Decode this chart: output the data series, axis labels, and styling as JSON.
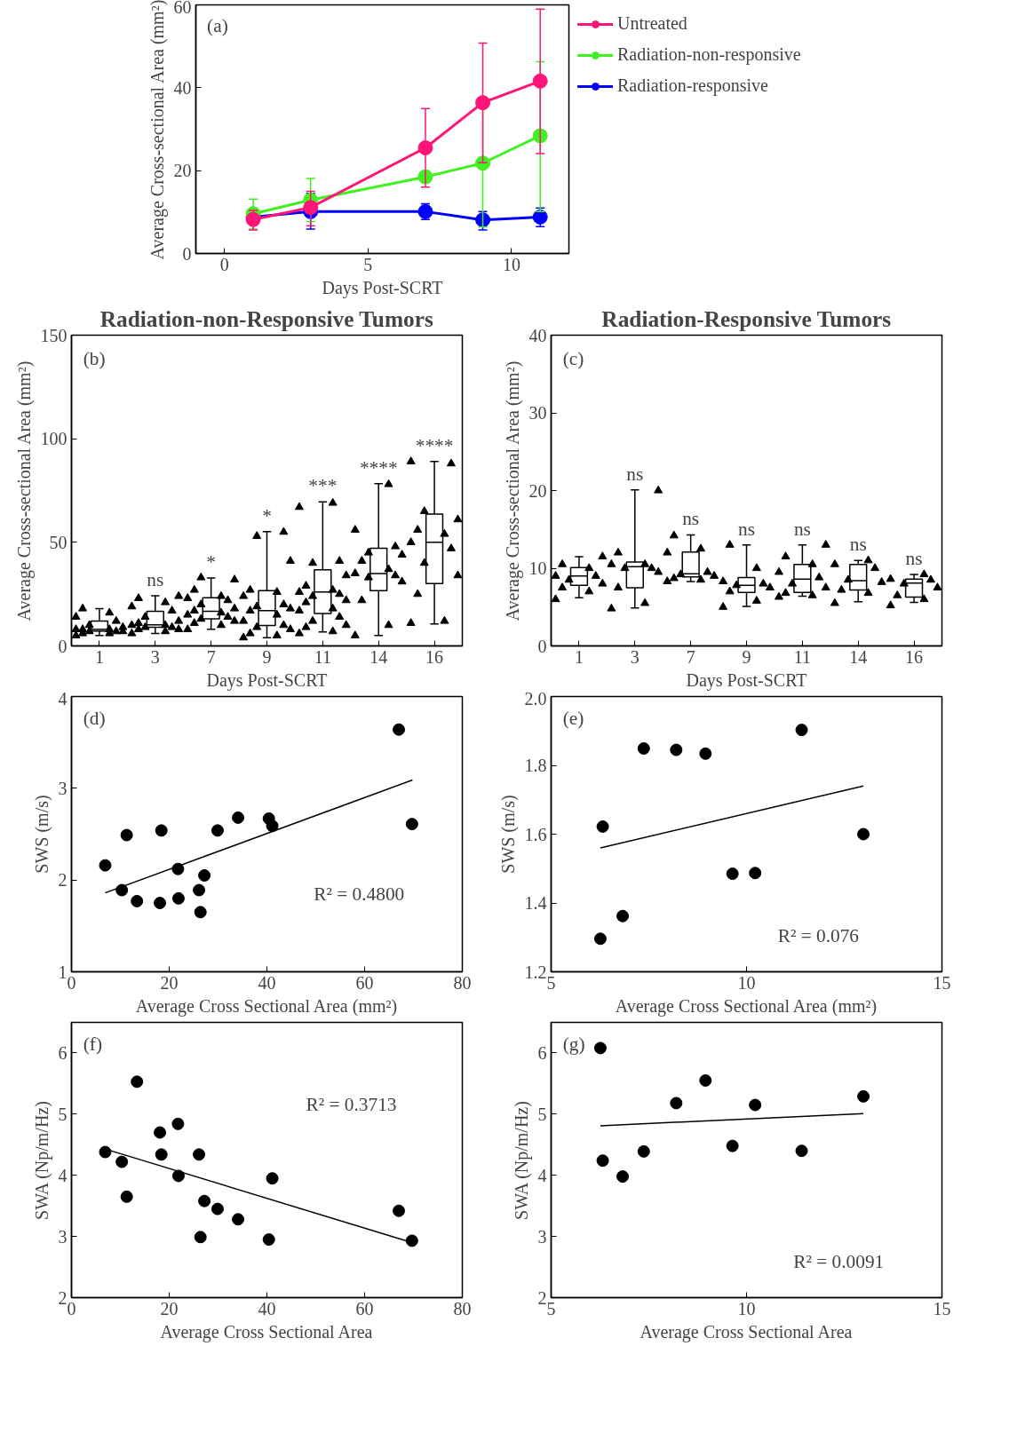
{
  "chart_data": [
    {
      "type": "line",
      "xlabel": "Days Post-SCRT",
      "ylabel": "Average Cross-sectional Area (mm²)",
      "x": [
        1,
        3,
        7,
        9,
        11
      ],
      "xlim": [
        -1,
        12
      ],
      "xticks": [
        0,
        5,
        10
      ],
      "ylim": [
        0,
        60
      ],
      "yticks": [
        0,
        20,
        40,
        60
      ],
      "marker": "circle",
      "legend": "right",
      "annotations": [
        "(a)"
      ],
      "series": [
        {
          "name": "Untreated",
          "color": "#ff1478",
          "values": [
            8.2,
            11.1,
            25.5,
            36.4,
            41.6
          ],
          "errors": [
            [
              5.7,
              10.4
            ],
            [
              6.7,
              15.0
            ],
            [
              16.0,
              35.0
            ],
            [
              21.9,
              50.8
            ],
            [
              24.1,
              59.0
            ]
          ]
        },
        {
          "name": "Radiation-non-responsive",
          "color": "#40f020",
          "values": [
            9.6,
            12.9,
            18.5,
            21.8,
            28.4
          ],
          "errors": [
            [
              5.9,
              13.1
            ],
            [
              7.7,
              18.1
            ],
            null,
            [
              6.4,
              37.6
            ],
            [
              10.1,
              46.3
            ]
          ]
        },
        {
          "name": "Radiation-responsive",
          "color": "#0000ff",
          "values": [
            8.8,
            10.1,
            10.1,
            8.1,
            8.8
          ],
          "errors": [
            null,
            [
              5.9,
              14.5
            ],
            [
              8.2,
              12.0
            ],
            [
              5.7,
              10.1
            ],
            [
              6.5,
              11.0
            ]
          ]
        }
      ]
    },
    {
      "type": "box",
      "title": "Radiation-non-Responsive Tumors",
      "xlabel": "Days Post-SCRT",
      "ylabel": "Average Cross-sectional Area (mm²)",
      "categories": [
        "1",
        "3",
        "7",
        "9",
        "11",
        "14",
        "16"
      ],
      "ylim": [
        0,
        150
      ],
      "yticks": [
        0,
        50,
        100,
        150
      ],
      "marker": "triangle",
      "annotations": [
        "(b)",
        {
          "text": "ns",
          "x": "3",
          "y": 24.2
        },
        {
          "text": "*",
          "x": "7",
          "y": 32.8
        },
        {
          "text": "*",
          "x": "9",
          "y": 55.2
        },
        {
          "text": "***",
          "x": "11",
          "y": 69.5
        },
        {
          "text": "****",
          "x": "14",
          "y": 78.3
        },
        {
          "text": "****",
          "x": "16",
          "y": 89
        }
      ],
      "boxes": [
        {
          "low": 5,
          "q1": 7.2,
          "median": 8,
          "q3": 12,
          "high": 18
        },
        {
          "low": 6,
          "q1": 9,
          "median": 10.2,
          "q3": 16.7,
          "high": 24.2
        },
        {
          "low": 8,
          "q1": 13.1,
          "median": 16.7,
          "q3": 23.3,
          "high": 32.8
        },
        {
          "low": 4,
          "q1": 9.9,
          "median": 17,
          "q3": 26.7,
          "high": 55.2
        },
        {
          "low": 6.8,
          "q1": 15.6,
          "median": 26,
          "q3": 36.7,
          "high": 69.5
        },
        {
          "low": 5,
          "q1": 26.7,
          "median": 34.9,
          "q3": 47.1,
          "high": 78.3
        },
        {
          "low": 10.6,
          "q1": 30.1,
          "median": 50,
          "q3": 63.6,
          "high": 89
        }
      ],
      "series": [
        {
          "type": "scatter",
          "color": "#000000",
          "x": [
            "1",
            "1",
            "1",
            "1",
            "1",
            "1",
            "1",
            "1",
            "1",
            "1",
            "1",
            "1",
            "1",
            "1",
            "1",
            "3",
            "3",
            "3",
            "3",
            "3",
            "3",
            "3",
            "3",
            "3",
            "3",
            "3",
            "3",
            "3",
            "3",
            "3",
            "3",
            "7",
            "7",
            "7",
            "7",
            "7",
            "7",
            "7",
            "7",
            "7",
            "7",
            "7",
            "7",
            "7",
            "7",
            "7",
            "7",
            "7",
            "9",
            "9",
            "9",
            "9",
            "9",
            "9",
            "9",
            "9",
            "9",
            "9",
            "9",
            "9",
            "9",
            "9",
            "9",
            "9",
            "9",
            "9",
            "11",
            "11",
            "11",
            "11",
            "11",
            "11",
            "11",
            "11",
            "11",
            "11",
            "11",
            "11",
            "11",
            "11",
            "11",
            "11",
            "11",
            "11",
            "11",
            "11",
            "14",
            "14",
            "14",
            "14",
            "14",
            "14",
            "14",
            "14",
            "14",
            "14",
            "14",
            "14",
            "14",
            "14",
            "16",
            "16",
            "16",
            "16",
            "16",
            "16",
            "16",
            "16",
            "16",
            "16",
            "16",
            "16",
            "16"
          ],
          "values": [
            5,
            6,
            6,
            7,
            7,
            7,
            8,
            8,
            8,
            9,
            10,
            12,
            14,
            16,
            18,
            6,
            7,
            8,
            8,
            9,
            9,
            10,
            10,
            11,
            12,
            14,
            17,
            19,
            21,
            23,
            24,
            8,
            10,
            11,
            12,
            13,
            14,
            15,
            16,
            17,
            18,
            20,
            22,
            23,
            24,
            27,
            32,
            33,
            4,
            5,
            6,
            8,
            9,
            10,
            12,
            15,
            17,
            18,
            19,
            20,
            24,
            26,
            27,
            41,
            53,
            55,
            6,
            7,
            9,
            10,
            12,
            14,
            17,
            18,
            21,
            22,
            24,
            25,
            26,
            27,
            29,
            34,
            40,
            41,
            67,
            69,
            5,
            10,
            22,
            31,
            33,
            34,
            35,
            37,
            41,
            44,
            45,
            48,
            56,
            78,
            11,
            12,
            25,
            34,
            40,
            47,
            50,
            54,
            56,
            61,
            65,
            88,
            89
          ]
        }
      ]
    },
    {
      "type": "box",
      "title": "Radiation-Responsive Tumors",
      "xlabel": "Days Post-SCRT",
      "ylabel": "Average Cross-sectional Area (mm²)",
      "categories": [
        "1",
        "3",
        "7",
        "9",
        "11",
        "14",
        "16"
      ],
      "ylim": [
        0,
        40
      ],
      "yticks": [
        0,
        10,
        20,
        30,
        40
      ],
      "marker": "triangle",
      "annotations": [
        "(c)",
        {
          "text": "ns",
          "x": "3",
          "y": 20.1
        },
        {
          "text": "ns",
          "x": "7",
          "y": 14.3
        },
        {
          "text": "ns",
          "x": "9",
          "y": 13
        },
        {
          "text": "ns",
          "x": "11",
          "y": 13
        },
        {
          "text": "ns",
          "x": "14",
          "y": 11
        },
        {
          "text": "ns",
          "x": "16",
          "y": 9.2
        }
      ],
      "boxes": [
        {
          "low": 6.2,
          "q1": 7.8,
          "median": 9,
          "q3": 10.1,
          "high": 11.5
        },
        {
          "low": 4.9,
          "q1": 7.5,
          "median": 10.2,
          "q3": 10.8,
          "high": 20.1
        },
        {
          "low": 8.3,
          "q1": 8.9,
          "median": 9.3,
          "q3": 12.1,
          "high": 14.3
        },
        {
          "low": 5.1,
          "q1": 6.9,
          "median": 7.8,
          "q3": 8.8,
          "high": 13
        },
        {
          "low": 6.4,
          "q1": 6.9,
          "median": 8.6,
          "q3": 10.5,
          "high": 13
        },
        {
          "low": 5.7,
          "q1": 7.2,
          "median": 8.4,
          "q3": 10.5,
          "high": 11
        },
        {
          "low": 5.6,
          "q1": 6.3,
          "median": 8.1,
          "q3": 8.6,
          "high": 9.2
        }
      ],
      "series": [
        {
          "type": "scatter",
          "color": "#000000",
          "x": [
            "1",
            "1",
            "1",
            "1",
            "1",
            "1",
            "1",
            "1",
            "1",
            "1",
            "3",
            "3",
            "3",
            "3",
            "3",
            "3",
            "3",
            "3",
            "3",
            "3",
            "7",
            "7",
            "7",
            "7",
            "7",
            "7",
            "7",
            "7",
            "7",
            "9",
            "9",
            "9",
            "9",
            "9",
            "9",
            "9",
            "9",
            "9",
            "11",
            "11",
            "11",
            "11",
            "11",
            "11",
            "11",
            "11",
            "11",
            "11",
            "14",
            "14",
            "14",
            "14",
            "14",
            "14",
            "14",
            "14",
            "16",
            "16",
            "16",
            "16",
            "16",
            "16",
            "16",
            "16"
          ],
          "values": [
            6,
            7,
            7.5,
            8,
            8.5,
            9,
            9,
            10,
            10.5,
            11.5,
            4.8,
            5.5,
            7.5,
            9.5,
            10,
            10,
            10.5,
            10.5,
            12,
            20,
            8.3,
            8.5,
            8.7,
            9,
            9.2,
            9.5,
            12,
            12.5,
            14.2,
            5,
            5.8,
            7,
            7.5,
            7.8,
            8,
            8.3,
            10,
            13,
            6.3,
            6.5,
            6.8,
            7.5,
            8,
            8.8,
            9.5,
            10.5,
            11.5,
            13,
            5.5,
            6.8,
            7.2,
            8.2,
            8.5,
            10,
            10.5,
            11,
            5.2,
            6,
            6.5,
            7.5,
            8,
            8.5,
            8.6,
            9.2
          ]
        }
      ]
    },
    {
      "type": "scatter",
      "xlabel": "Average Cross Sectional Area (mm²)",
      "ylabel": "SWS (m/s)",
      "xlim": [
        0,
        80
      ],
      "xticks": [
        0,
        20,
        40,
        60,
        80
      ],
      "ylim": [
        1,
        4
      ],
      "yticks": [
        1,
        2,
        3,
        4
      ],
      "marker": "circle",
      "annotations": [
        "(d)",
        "R² = 0.4800"
      ],
      "series": [
        {
          "color": "#000000",
          "x": [
            6.9,
            10.3,
            11.3,
            13.4,
            18.1,
            18.4,
            21.8,
            21.9,
            26.1,
            26.4,
            27.2,
            29.9,
            34.1,
            40.4,
            41.1,
            67.0,
            69.7
          ],
          "values": [
            2.16,
            1.89,
            2.49,
            1.77,
            1.75,
            2.54,
            2.12,
            1.8,
            1.89,
            1.65,
            2.05,
            2.54,
            2.68,
            2.67,
            2.59,
            3.64,
            2.61
          ]
        },
        {
          "type": "line",
          "marker": "none",
          "color": "#000000",
          "x": [
            6.9,
            69.8
          ],
          "values": [
            1.86,
            3.09
          ]
        }
      ]
    },
    {
      "type": "scatter",
      "xlabel": "Average Cross Sectional Area (mm²)",
      "ylabel": "SWS (m/s)",
      "xlim": [
        5,
        15
      ],
      "xticks": [
        5,
        10,
        15
      ],
      "ylim": [
        1.2,
        2.0
      ],
      "yticks": [
        1.2,
        1.4,
        1.6,
        1.8,
        {
          "value": 2.0,
          "label": "2.0"
        }
      ],
      "marker": "circle",
      "annotations": [
        "(e)",
        "R² = 0.076"
      ],
      "series": [
        {
          "color": "#000000",
          "x": [
            6.26,
            6.32,
            6.83,
            7.37,
            8.2,
            8.95,
            9.64,
            10.22,
            11.41,
            12.99
          ],
          "values": [
            1.296,
            1.622,
            1.362,
            1.849,
            1.845,
            1.834,
            1.485,
            1.487,
            1.903,
            1.6
          ]
        },
        {
          "type": "line",
          "marker": "none",
          "color": "#000000",
          "x": [
            6.26,
            12.99
          ],
          "values": [
            1.56,
            1.74
          ]
        }
      ]
    },
    {
      "type": "scatter",
      "xlabel": "Average Cross Sectional Area",
      "ylabel": "SWA (Np/m/Hz)",
      "xlim": [
        0,
        80
      ],
      "xticks": [
        0,
        20,
        40,
        60,
        80
      ],
      "ylim": [
        2,
        6.5
      ],
      "yticks": [
        2,
        3,
        4,
        5,
        6
      ],
      "marker": "circle",
      "annotations": [
        "(f)",
        "R² = 0.3713"
      ],
      "series": [
        {
          "color": "#000000",
          "x": [
            6.9,
            10.3,
            11.3,
            13.4,
            18.1,
            18.4,
            21.8,
            21.9,
            26.1,
            26.4,
            27.2,
            29.9,
            34.1,
            40.4,
            41.1,
            67.0,
            69.7
          ],
          "values": [
            4.38,
            4.22,
            3.65,
            5.53,
            4.7,
            4.34,
            4.84,
            3.99,
            4.34,
            2.99,
            3.58,
            3.45,
            3.28,
            2.95,
            3.95,
            3.42,
            2.93
          ]
        },
        {
          "type": "line",
          "marker": "none",
          "color": "#000000",
          "x": [
            6.9,
            69.7
          ],
          "values": [
            4.43,
            2.9
          ]
        }
      ]
    },
    {
      "type": "scatter",
      "xlabel": "Average Cross Sectional Area",
      "ylabel": "SWA (Np/m/Hz)",
      "xlim": [
        5,
        15
      ],
      "xticks": [
        5,
        10,
        15
      ],
      "ylim": [
        2,
        6.5
      ],
      "yticks": [
        2,
        3,
        4,
        5,
        6
      ],
      "marker": "circle",
      "annotations": [
        "(g)",
        "R² = 0.0091"
      ],
      "series": [
        {
          "color": "#000000",
          "x": [
            6.26,
            6.32,
            6.83,
            7.37,
            8.2,
            8.95,
            9.64,
            10.22,
            11.41,
            12.99
          ],
          "values": [
            6.08,
            4.24,
            3.98,
            4.39,
            5.18,
            5.55,
            4.48,
            5.15,
            4.4,
            5.29
          ]
        },
        {
          "type": "line",
          "marker": "none",
          "color": "#000000",
          "x": [
            6.26,
            12.99
          ],
          "values": [
            4.81,
            5.01
          ]
        }
      ]
    }
  ]
}
